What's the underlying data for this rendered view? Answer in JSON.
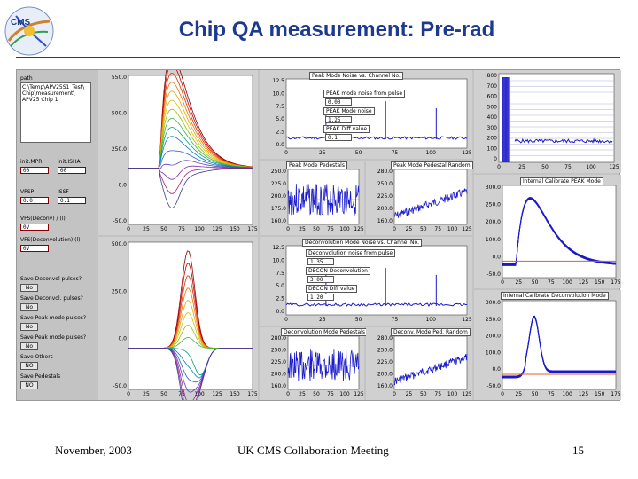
{
  "slide": {
    "title": "Chip QA measurement: Pre-rad",
    "footer_left": "November, 2003",
    "footer_center": "UK CMS Collaboration Meeting",
    "footer_right": "15",
    "colors": {
      "title": "#1d3a8f",
      "rule": "#1d3a8f",
      "trace_blue": "#1a1acc",
      "trace_orange": "#e06020"
    }
  },
  "logo": {
    "text": "CMS"
  },
  "controls": {
    "path_label": "path",
    "path_lines": [
      "C:\\Temp\\APV25S1_Test\\",
      "Chip\\measurement\\",
      "APV25 Chip 1"
    ],
    "fields": [
      {
        "label": "init.MPR",
        "value": "00"
      },
      {
        "label": "init.ISHA",
        "value": "00"
      },
      {
        "label": "VPSP",
        "value": "0.0"
      },
      {
        "label": "ISSF",
        "value": "0.1"
      },
      {
        "label": "VFS(Deconv) / (l)",
        "value": "0V"
      },
      {
        "label": "VFS(Deconvolution) (l)",
        "value": "0V"
      }
    ],
    "toggles": [
      {
        "label": "Save Deconvol pulses?",
        "value": "No"
      },
      {
        "label": "Save Deconvol. pulses?",
        "value": "No"
      },
      {
        "label": "Save Peak mode pulses?",
        "value": "No"
      },
      {
        "label": "Save Peak mode pulses?",
        "value": "No"
      },
      {
        "label": "Save Others",
        "value": "NO"
      },
      {
        "label": "Save Pedestals",
        "value": "NO"
      }
    ]
  },
  "peak_pulse_plot": {
    "y_ticks": [
      "550.0",
      "500.0",
      "250.0",
      "0.0",
      "-50.0"
    ],
    "x_ticks": [
      "0",
      "25",
      "50",
      "75",
      "100",
      "125",
      "150",
      "175"
    ]
  },
  "deconv_pulse_plot": {
    "y_ticks": [
      "500.0",
      "250.0",
      "0.0",
      "-50.0"
    ],
    "x_ticks": [
      "0",
      "25",
      "50",
      "75",
      "100",
      "125",
      "150",
      "175"
    ]
  },
  "peak_noise_panel": {
    "header": "Peak Mode Noise vs. Channel No.",
    "y_ticks": [
      "12.5",
      "10.0",
      "7.5",
      "5.0",
      "2.5",
      "0.0"
    ],
    "x_ticks": [
      "0",
      "25",
      "50",
      "75",
      "100",
      "125"
    ],
    "boxes": [
      {
        "label": "PEAK mode noise from pulse",
        "value": ""
      },
      {
        "label": "",
        "value": "0.00"
      },
      {
        "label": "PEAK Mode noise",
        "value": ""
      },
      {
        "label": "",
        "value": "1.25"
      },
      {
        "label": "PEAK Diff value",
        "value": ""
      },
      {
        "label": "",
        "value": "0.1"
      }
    ]
  },
  "top_right_plot": {
    "y_ticks": [
      "800",
      "700",
      "600",
      "500",
      "400",
      "300",
      "200",
      "100",
      "0"
    ],
    "x_ticks": [
      "0",
      "25",
      "50",
      "75",
      "100",
      "125"
    ]
  },
  "peak_ped_plot": {
    "header": "Peak Mode Pedestals",
    "y_ticks": [
      "250.0",
      "225.0",
      "200.0",
      "175.0",
      "160.0"
    ],
    "x_ticks": [
      "0",
      "25",
      "50",
      "75",
      "100",
      "125"
    ]
  },
  "peak_rmp_plot": {
    "header": "Peak Mode Pedestal Random",
    "y_ticks": [
      "280.0",
      "250.0",
      "225.0",
      "200.0",
      "160.0"
    ],
    "x_ticks": [
      "0",
      "25",
      "50",
      "75",
      "100",
      "125"
    ]
  },
  "peak_calib_plot": {
    "header": "Internal Calibrate PEAK Mode",
    "y_ticks": [
      "300.0",
      "250.0",
      "200.0",
      "100.0",
      "0.0",
      "-50.0"
    ],
    "x_ticks": [
      "0",
      "25",
      "50",
      "75",
      "100",
      "125",
      "150",
      "175"
    ]
  },
  "deconv_noise_panel": {
    "header": "Deconvolution Mode Noise vs. Channel No.",
    "y_ticks": [
      "12.5",
      "10.0",
      "7.5",
      "5.0",
      "2.5",
      "0.0"
    ],
    "x_ticks": [
      "0",
      "25",
      "50",
      "75",
      "100",
      "125"
    ],
    "boxes": [
      {
        "label": "Deconvolution noise from pulse",
        "value": ""
      },
      {
        "label": "",
        "value": "1.35"
      },
      {
        "label": "DECON Deconvolution",
        "value": ""
      },
      {
        "label": "",
        "value": "3.00"
      },
      {
        "label": "DECON Diff value",
        "value": ""
      },
      {
        "label": "",
        "value": "1.20"
      }
    ]
  },
  "deconv_ped_plot": {
    "header": "Deconvolution Mode Pedestals",
    "y_ticks": [
      "280.0",
      "250.0",
      "225.0",
      "200.0",
      "160.0"
    ],
    "x_ticks": [
      "0",
      "25",
      "50",
      "75",
      "100",
      "125"
    ]
  },
  "deconv_rmp_plot": {
    "header": "Deconv. Mode Ped. Random",
    "y_ticks": [
      "280.0",
      "250.0",
      "225.0",
      "200.0",
      "160.0"
    ],
    "x_ticks": [
      "0",
      "25",
      "50",
      "75",
      "100",
      "125"
    ]
  },
  "deconv_calib_plot": {
    "header": "Internal Calibrate Deconvolution Mode",
    "y_ticks": [
      "300.0",
      "250.0",
      "200.0",
      "100.0",
      "0.0",
      "-50.0"
    ],
    "x_ticks": [
      "0",
      "25",
      "50",
      "75",
      "100",
      "125",
      "150",
      "175"
    ]
  }
}
